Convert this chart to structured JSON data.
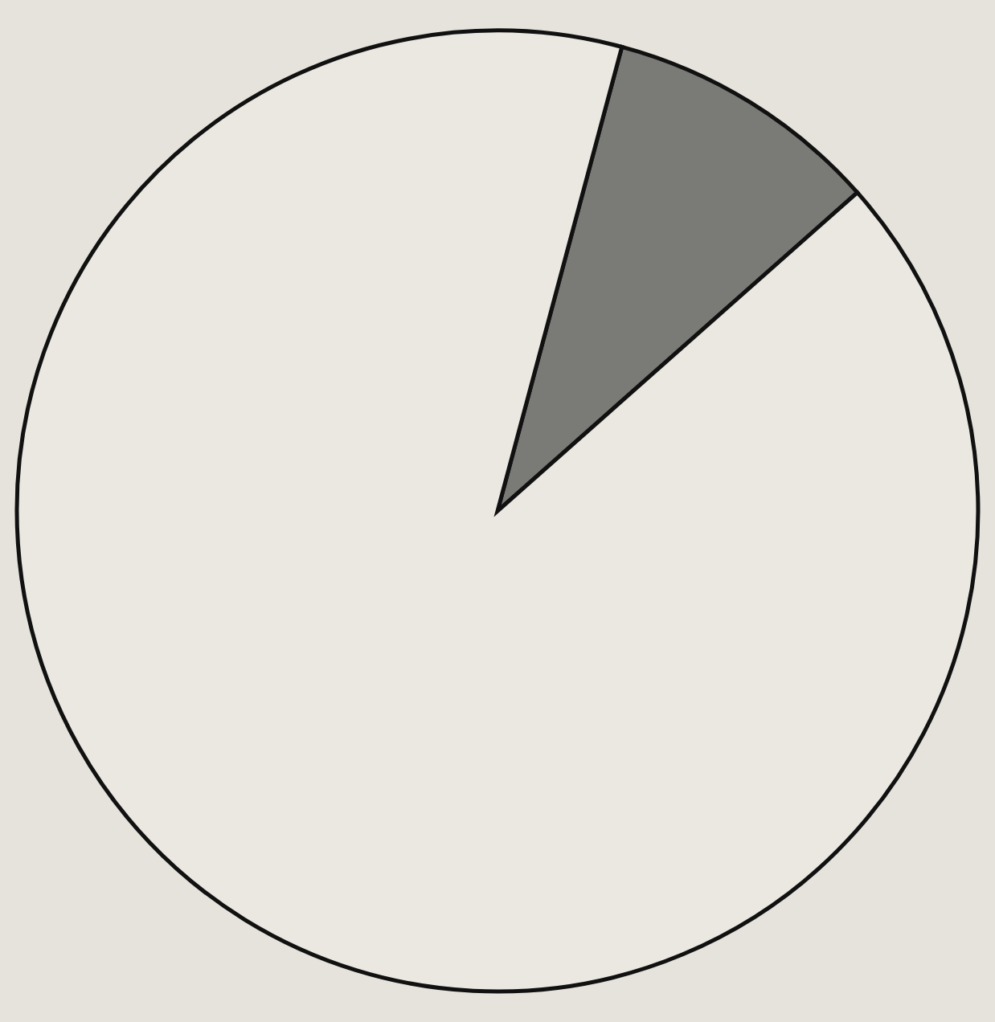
{
  "chart_data": {
    "type": "pie",
    "categories": [
      null,
      null
    ],
    "values": [
      9.3,
      90.7
    ],
    "colors": [
      "#7a7a76",
      "#ebe8e2"
    ]
  }
}
